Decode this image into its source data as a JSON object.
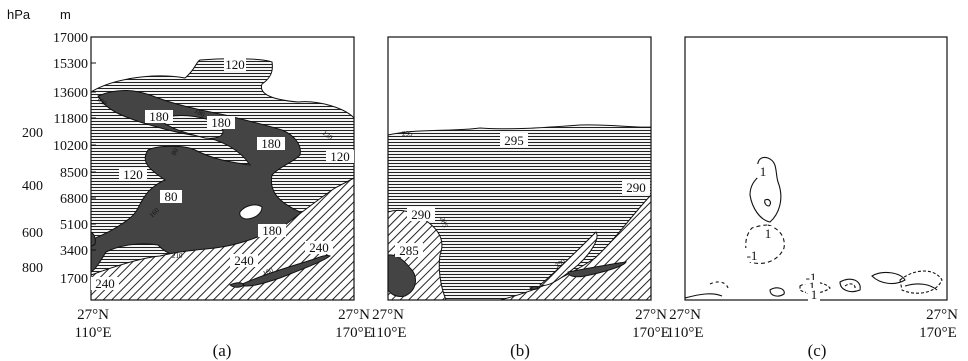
{
  "chart_data": [
    {
      "type": "contour",
      "panel_label": "(a)",
      "left_axis_unit": "hPa",
      "right_axis_unit": "m",
      "pressure_ticks": [
        "200",
        "400",
        "600",
        "800"
      ],
      "height_ticks": [
        "17000",
        "15300",
        "13600",
        "11800",
        "10200",
        "8500",
        "6800",
        "5100",
        "3400",
        "1700"
      ],
      "x_left_label": [
        "27°N",
        "110°E"
      ],
      "x_right_label": [
        "27°N",
        "170°E"
      ],
      "contour_labels": [
        "120",
        "180",
        "180",
        "180",
        "120",
        "120",
        "80",
        "180",
        "240",
        "240",
        "240"
      ],
      "small_labels": [
        "180",
        "180",
        "120",
        "80",
        "160",
        "210",
        "180"
      ]
    },
    {
      "type": "contour",
      "panel_label": "(b)",
      "x_left_label": [
        "27°N",
        "110°E"
      ],
      "x_right_label": [
        "27°N",
        "170°E"
      ],
      "contour_labels": [
        "295",
        "290",
        "290",
        "285"
      ],
      "small_labels": [
        "295",
        "285",
        "290"
      ]
    },
    {
      "type": "contour",
      "panel_label": "(c)",
      "x_left_label": [
        "27°N",
        "110°E"
      ],
      "x_right_label": [
        "27°N",
        "170°E"
      ],
      "contour_labels": [
        "1",
        "1",
        "-1",
        "-1",
        "1",
        "1"
      ]
    }
  ]
}
